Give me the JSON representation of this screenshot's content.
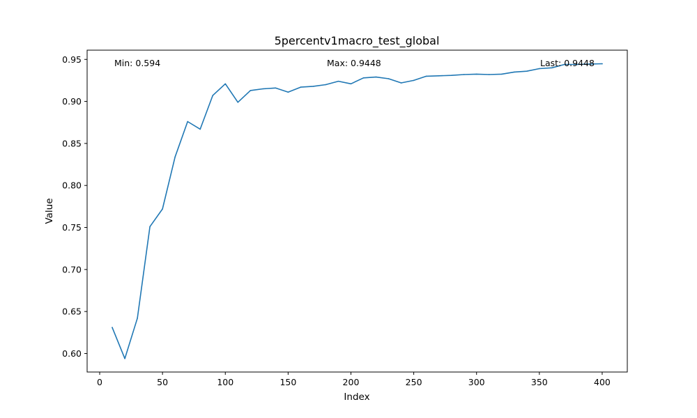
{
  "chart_data": {
    "type": "line",
    "title": "5percentv1macro_test_global",
    "xlabel": "Index",
    "ylabel": "Value",
    "xlim": [
      -10,
      420
    ],
    "ylim": [
      0.578,
      0.961
    ],
    "x_ticks": [
      0,
      50,
      100,
      150,
      200,
      250,
      300,
      350,
      400
    ],
    "y_ticks": [
      0.6,
      0.65,
      0.7,
      0.75,
      0.8,
      0.85,
      0.9,
      0.95
    ],
    "x_tick_labels": [
      "0",
      "50",
      "100",
      "150",
      "200",
      "250",
      "300",
      "350",
      "400"
    ],
    "y_tick_labels": [
      "0.60",
      "0.65",
      "0.70",
      "0.75",
      "0.80",
      "0.85",
      "0.90",
      "0.95"
    ],
    "grid": false,
    "line_color": "#1f77b4",
    "series": [
      {
        "x": [
          10,
          20,
          30,
          40,
          50,
          60,
          70,
          80,
          90,
          100,
          110,
          120,
          130,
          140,
          150,
          160,
          170,
          180,
          190,
          200,
          210,
          220,
          230,
          240,
          250,
          260,
          270,
          280,
          290,
          300,
          310,
          320,
          330,
          340,
          350,
          360,
          370,
          380,
          390,
          400
        ],
        "values": [
          0.631,
          0.594,
          0.642,
          0.751,
          0.772,
          0.834,
          0.876,
          0.867,
          0.907,
          0.921,
          0.899,
          0.913,
          0.915,
          0.916,
          0.911,
          0.917,
          0.918,
          0.92,
          0.924,
          0.921,
          0.928,
          0.929,
          0.927,
          0.922,
          0.925,
          0.93,
          0.9305,
          0.931,
          0.932,
          0.9325,
          0.932,
          0.9325,
          0.935,
          0.936,
          0.939,
          0.94,
          0.944,
          0.944,
          0.9445,
          0.9448
        ]
      }
    ],
    "annotations": {
      "min": "Min: 0.594",
      "max": "Max: 0.9448",
      "last": "Last: 0.9448"
    }
  }
}
